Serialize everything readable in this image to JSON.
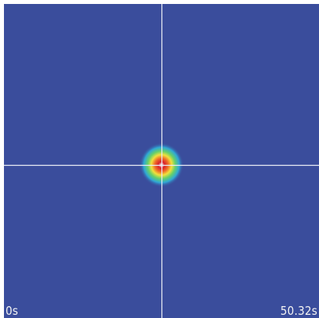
{
  "viewer": {
    "start_time_label": "0s",
    "end_time_label": "50.32s",
    "background_color": "#3a4d9c",
    "crosshair_color": "#e8ecf4",
    "heat_colors": {
      "outer": "#2fa8d6",
      "mid": "#66d06a",
      "inner": "#f2e03c",
      "hot": "#e8402a",
      "core": "#ffffff"
    }
  }
}
